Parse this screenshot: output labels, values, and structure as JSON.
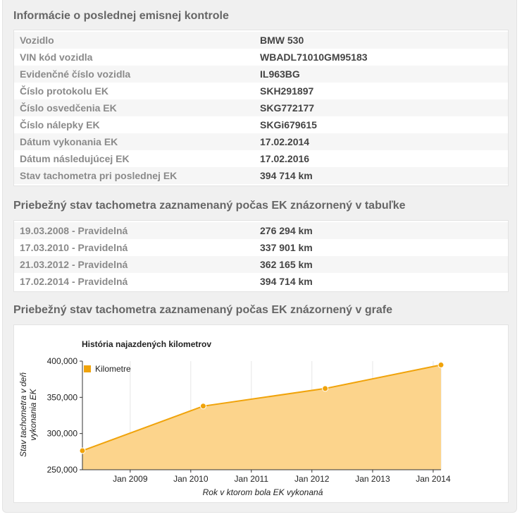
{
  "sections": {
    "emission_info": {
      "title": "Informácie o poslednej emisnej kontrole",
      "rows": [
        {
          "label": "Vozidlo",
          "value": "BMW 530"
        },
        {
          "label": "VIN kód vozidla",
          "value": "WBADL71010GM95183"
        },
        {
          "label": "Evidenčné číslo vozidla",
          "value": "IL963BG"
        },
        {
          "label": "Číslo protokolu EK",
          "value": "SKH291897"
        },
        {
          "label": "Číslo osvedčenia EK",
          "value": "SKG772177"
        },
        {
          "label": "Číslo nálepky EK",
          "value": "SKGi679615"
        },
        {
          "label": "Dátum vykonania EK",
          "value": "17.02.2014"
        },
        {
          "label": "Dátum následujúcej EK",
          "value": "17.02.2016"
        },
        {
          "label": "Stav tachometra pri poslednej EK",
          "value": "394 714 km"
        }
      ]
    },
    "odometer_table": {
      "title": "Priebežný stav tachometra zaznamenaný počas EK znázornený v tabuľke",
      "rows": [
        {
          "label": "19.03.2008 - Pravidelná",
          "value": "276 294 km"
        },
        {
          "label": "17.03.2010 - Pravidelná",
          "value": "337 901 km"
        },
        {
          "label": "21.03.2012 - Pravidelná",
          "value": "362 165 km"
        },
        {
          "label": "17.02.2014 - Pravidelná",
          "value": "394 714 km"
        }
      ]
    },
    "odometer_chart": {
      "title": "Priebežný stav tachometra zaznamenaný počas EK znázornený v grafe"
    }
  },
  "chart_data": {
    "type": "area",
    "title": "História najazdených kilometrov",
    "xlabel": "Rok v ktorom bola EK vykonaná",
    "ylabel_lines": [
      "Stav tachometra v deň",
      "vykonania EK"
    ],
    "series": [
      {
        "name": "Kilometre",
        "color": "#f0a30a",
        "fill": "#fcd48c",
        "x": [
          "2008-03-19",
          "2010-03-17",
          "2012-03-21",
          "2014-02-17"
        ],
        "values": [
          276294,
          337901,
          362165,
          394714
        ]
      }
    ],
    "xlim": [
      "2008-03-19",
      "2014-02-17"
    ],
    "ylim": [
      250000,
      400000
    ],
    "y_ticks": [
      250000,
      300000,
      350000,
      400000
    ],
    "y_tick_labels": [
      "250,000",
      "300,000",
      "350,000",
      "400,000"
    ],
    "x_ticks": [
      "2009-01-01",
      "2010-01-01",
      "2011-01-01",
      "2012-01-01",
      "2013-01-01",
      "2014-01-01"
    ],
    "x_tick_labels": [
      "Jan 2009",
      "Jan 2010",
      "Jan 2011",
      "Jan 2012",
      "Jan 2013",
      "Jan 2014"
    ],
    "grid": "vertical",
    "legend_position": "top-left"
  }
}
